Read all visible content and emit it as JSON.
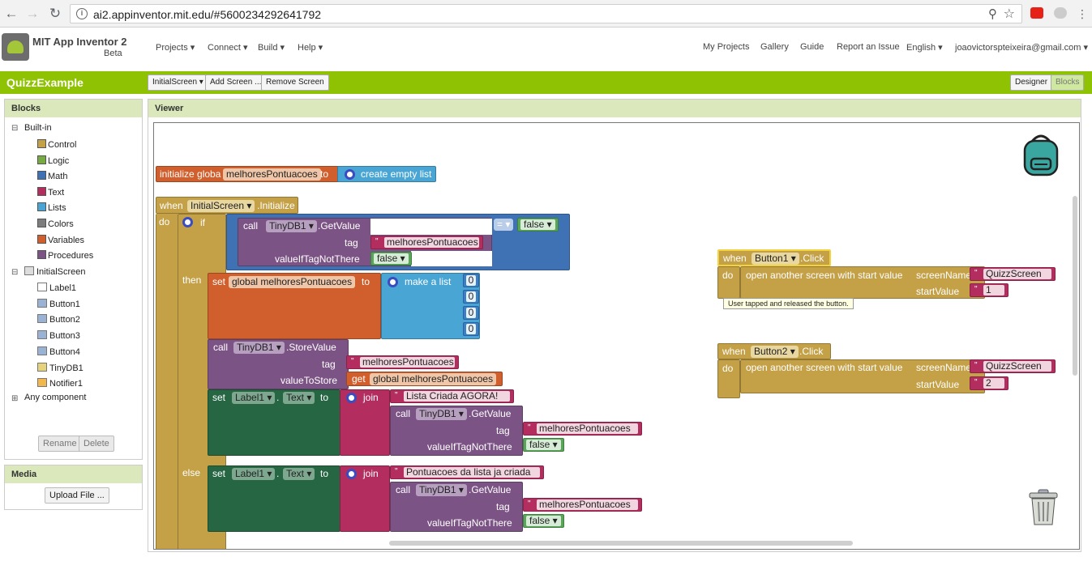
{
  "browser": {
    "url": "ai2.appinventor.mit.edu/#5600234292641792"
  },
  "header": {
    "brand": "MIT App Inventor 2",
    "brand_sub": "Beta",
    "menus": [
      "Projects ▾",
      "Connect ▾",
      "Build ▾",
      "Help ▾"
    ],
    "right_links": [
      "My Projects",
      "Gallery",
      "Guide",
      "Report an Issue",
      "English ▾",
      "joaovictorspteixeira@gmail.com ▾"
    ]
  },
  "project_bar": {
    "name": "QuizzExample",
    "screen_select": "InitialScreen ▾",
    "add_screen": "Add Screen ...",
    "remove_screen": "Remove Screen",
    "designer": "Designer",
    "blocks": "Blocks"
  },
  "blocks_panel": {
    "title": "Blocks",
    "builtin": "Built-in",
    "builtin_items": [
      {
        "label": "Control",
        "color": "#c4a047"
      },
      {
        "label": "Logic",
        "color": "#77ab41"
      },
      {
        "label": "Math",
        "color": "#3f71b5"
      },
      {
        "label": "Text",
        "color": "#b32d5e"
      },
      {
        "label": "Lists",
        "color": "#49a6d4"
      },
      {
        "label": "Colors",
        "color": "#7d7d7d"
      },
      {
        "label": "Variables",
        "color": "#d05f2d"
      },
      {
        "label": "Procedures",
        "color": "#7c5385"
      }
    ],
    "screen": "InitialScreen",
    "components": [
      "Label1",
      "Button1",
      "Button2",
      "Button3",
      "Button4",
      "TinyDB1",
      "Notifier1"
    ],
    "any_component": "Any component",
    "rename": "Rename",
    "delete": "Delete"
  },
  "media_panel": {
    "title": "Media",
    "upload": "Upload File ..."
  },
  "viewer": {
    "title": "Viewer"
  },
  "workspace": {
    "global_init": {
      "label": "initialize globa",
      "name": "melhoresPontuacoes",
      "to": "to",
      "create": "create empty list"
    },
    "initialize": {
      "when": "when",
      "screen": "InitialScreen ▾",
      "event": ".Initialize",
      "do": "do",
      "if": "if",
      "then": "then",
      "else": "else",
      "call": "call",
      "db": "TinyDB1 ▾",
      "getvalue": ".GetValue",
      "storevalue": ".StoreValue",
      "tag": "tag",
      "tag_value": "melhoresPontuacoes",
      "valueiftag": "valueIfTagNotThere",
      "eq": "= ▾",
      "false": "false ▾",
      "false_plain": "false",
      "set": "set",
      "global_var": "global melhoresPontuacoes",
      "to": "to",
      "make_list": "make a list",
      "zero": "0",
      "value_to_store": "valueToStore",
      "get": "get",
      "label": "Label1 ▾",
      "text_prop": "Text ▾",
      "dot": ".",
      "join": "join",
      "msg_created": "Lista Criada AGORA!",
      "msg_exists": "Pontuacoes da lista ja criada"
    },
    "button1": {
      "when": "when",
      "button": "Button1 ▾",
      "event": ".Click",
      "do": "do",
      "open": "open another screen with start value",
      "screen_name": "screenName",
      "screen_value": "QuizzScreen",
      "start_value": "startValue",
      "start": "1",
      "tooltip": "User tapped and released the button."
    },
    "button2": {
      "when": "when",
      "button": "Button2 ▾",
      "event": ".Click",
      "do": "do",
      "open": "open another screen with start value",
      "screen_name": "screenName",
      "screen_value": "QuizzScreen",
      "start_value": "startValue",
      "start": "2"
    }
  }
}
